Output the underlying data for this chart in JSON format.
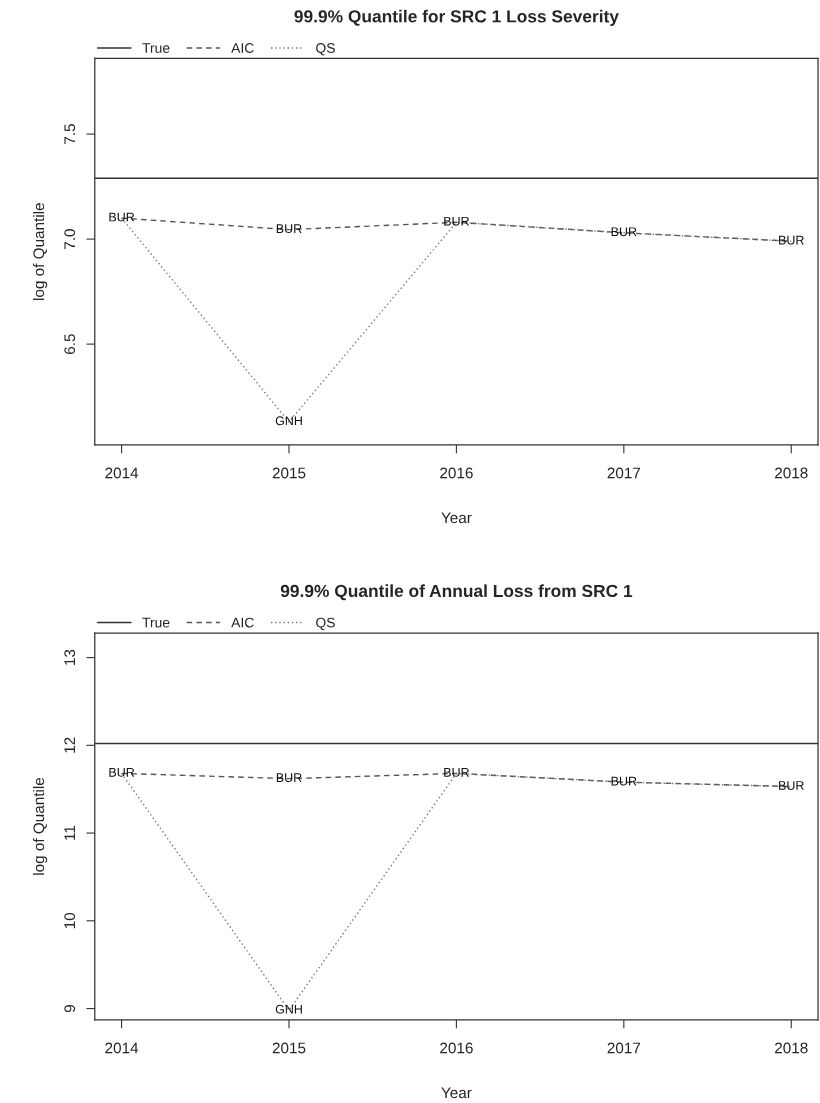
{
  "chart_data": [
    {
      "type": "line",
      "title": "99.9% Quantile for SRC 1 Loss Severity",
      "xlabel": "Year",
      "ylabel": "log of Quantile",
      "x": [
        2014,
        2015,
        2016,
        2017,
        2018
      ],
      "series": [
        {
          "name": "AIC",
          "color": "#555555",
          "line_style": "dashed",
          "values": [
            7.1,
            7.045,
            7.08,
            7.03,
            6.99
          ],
          "value_labels": [
            "BUR",
            "BUR",
            "BUR",
            "BUR",
            "BUR"
          ]
        },
        {
          "name": "QS",
          "color": "#777777",
          "line_style": "dotted",
          "values": [
            7.1,
            6.13,
            7.08,
            7.03,
            6.99
          ],
          "value_labels": [
            null,
            "GNH",
            null,
            null,
            null
          ]
        }
      ],
      "ref_lines": [
        {
          "axis": "y",
          "value": 7.29,
          "label": "True",
          "color": "#333333",
          "line_style": "solid"
        }
      ],
      "xlim": [
        2013.84,
        2018.16
      ],
      "xticks": [
        2014,
        2015,
        2016,
        2017,
        2018
      ],
      "ylim": [
        6.02,
        7.86
      ],
      "yticks": [
        {
          "value": 6.5,
          "label": "6.5"
        },
        {
          "value": 7.0,
          "label": "7.0"
        },
        {
          "value": 7.5,
          "label": "7.5"
        }
      ],
      "marker": "none",
      "grid": false,
      "legend": "top left"
    },
    {
      "type": "line",
      "title": "99.9% Quantile of Annual Loss from SRC 1",
      "xlabel": "Year",
      "ylabel": "log of Quantile",
      "x": [
        2014,
        2015,
        2016,
        2017,
        2018
      ],
      "series": [
        {
          "name": "AIC",
          "color": "#555555",
          "line_style": "dashed",
          "values": [
            11.68,
            11.62,
            11.68,
            11.58,
            11.53
          ],
          "value_labels": [
            "BUR",
            "BUR",
            "BUR",
            "BUR",
            "BUR"
          ]
        },
        {
          "name": "QS",
          "color": "#777777",
          "line_style": "dotted",
          "values": [
            11.68,
            8.98,
            11.68,
            11.58,
            11.53
          ],
          "value_labels": [
            null,
            "GNH",
            null,
            null,
            null
          ]
        }
      ],
      "ref_lines": [
        {
          "axis": "y",
          "value": 12.02,
          "label": "True",
          "color": "#333333",
          "line_style": "solid"
        }
      ],
      "xlim": [
        2013.84,
        2018.16
      ],
      "xticks": [
        2014,
        2015,
        2016,
        2017,
        2018
      ],
      "ylim": [
        8.87,
        13.28
      ],
      "yticks": [
        9,
        10,
        11,
        12,
        13
      ],
      "marker": "none",
      "grid": false,
      "legend": "top left"
    }
  ]
}
